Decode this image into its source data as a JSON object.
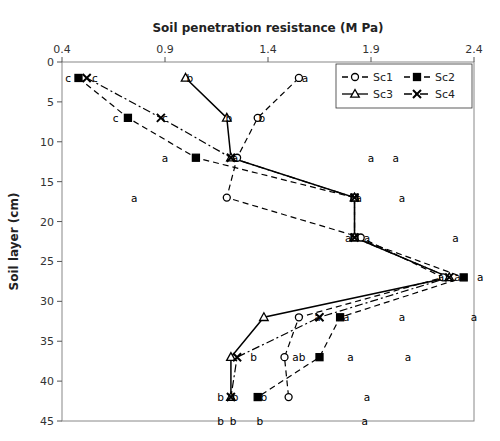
{
  "chart_data": {
    "type": "line",
    "xlabel": "Soil penetration resistance (M Pa)",
    "ylabel": "Soil layer (cm)",
    "xlim": [
      0.4,
      2.4
    ],
    "ylim": [
      45,
      0
    ],
    "xticks": [
      0.4,
      0.9,
      1.4,
      1.9,
      2.4
    ],
    "yticks": [
      0,
      5,
      10,
      15,
      20,
      25,
      30,
      35,
      40,
      45
    ],
    "y": [
      2,
      7,
      12,
      17,
      22,
      27,
      32,
      37,
      42
    ],
    "series": [
      {
        "name": "Sc1",
        "color": "#000000",
        "marker": "circle",
        "line_style": "dashed",
        "values": [
          1.55,
          1.35,
          1.25,
          1.2,
          1.85,
          2.25,
          1.55,
          1.48,
          1.5
        ]
      },
      {
        "name": "Sc2",
        "color": "#000000",
        "marker": "square",
        "line_style": "dashed",
        "values": [
          0.48,
          0.72,
          1.05,
          1.82,
          1.82,
          2.35,
          1.75,
          1.65,
          1.35
        ]
      },
      {
        "name": "Sc3",
        "color": "#000000",
        "marker": "triangle",
        "line_style": "solid",
        "values": [
          1.0,
          1.2,
          1.22,
          1.82,
          1.82,
          2.28,
          1.38,
          1.22,
          1.22
        ]
      },
      {
        "name": "Sc4",
        "color": "#000000",
        "marker": "x",
        "line_style": "dashdot",
        "values": [
          0.52,
          0.88,
          1.22,
          1.82,
          1.82,
          2.28,
          1.65,
          1.25,
          1.22
        ]
      }
    ],
    "annotations": [
      {
        "x": 0.43,
        "y": 2,
        "text": "c"
      },
      {
        "x": 0.56,
        "y": 2,
        "text": "c"
      },
      {
        "x": 1.02,
        "y": 2,
        "text": "b"
      },
      {
        "x": 1.58,
        "y": 2,
        "text": "a"
      },
      {
        "x": 0.66,
        "y": 7,
        "text": "c"
      },
      {
        "x": 0.9,
        "y": 7,
        "text": "c"
      },
      {
        "x": 1.21,
        "y": 7,
        "text": "b"
      },
      {
        "x": 1.37,
        "y": 7,
        "text": "b"
      },
      {
        "x": 0.9,
        "y": 12,
        "text": "a"
      },
      {
        "x": 1.24,
        "y": 12,
        "text": "a"
      },
      {
        "x": 1.9,
        "y": 12,
        "text": "a"
      },
      {
        "x": 2.02,
        "y": 12,
        "text": "a"
      },
      {
        "x": 0.75,
        "y": 17,
        "text": "a"
      },
      {
        "x": 1.84,
        "y": 17,
        "text": "a"
      },
      {
        "x": 2.05,
        "y": 17,
        "text": "a"
      },
      {
        "x": 1.79,
        "y": 22,
        "text": "a"
      },
      {
        "x": 1.88,
        "y": 22,
        "text": "a"
      },
      {
        "x": 2.31,
        "y": 22,
        "text": "a"
      },
      {
        "x": 2.24,
        "y": 27,
        "text": "a"
      },
      {
        "x": 2.32,
        "y": 27,
        "text": "a"
      },
      {
        "x": 2.43,
        "y": 27,
        "text": "a"
      },
      {
        "x": 1.64,
        "y": 32,
        "text": "a"
      },
      {
        "x": 1.78,
        "y": 32,
        "text": "a"
      },
      {
        "x": 2.05,
        "y": 32,
        "text": "a"
      },
      {
        "x": 2.4,
        "y": 32,
        "text": "a"
      },
      {
        "x": 1.33,
        "y": 37,
        "text": "b"
      },
      {
        "x": 1.55,
        "y": 37,
        "text": "ab"
      },
      {
        "x": 1.8,
        "y": 37,
        "text": "a"
      },
      {
        "x": 2.08,
        "y": 37,
        "text": "a"
      },
      {
        "x": 1.17,
        "y": 42,
        "text": "b"
      },
      {
        "x": 1.24,
        "y": 42,
        "text": "b"
      },
      {
        "x": 1.38,
        "y": 42,
        "text": "b"
      },
      {
        "x": 1.88,
        "y": 42,
        "text": "a"
      },
      {
        "x": 1.17,
        "y": 45,
        "text": "b"
      },
      {
        "x": 1.23,
        "y": 45,
        "text": "b"
      },
      {
        "x": 1.36,
        "y": 45,
        "text": "b"
      },
      {
        "x": 1.87,
        "y": 45,
        "text": "a"
      }
    ],
    "legend": "upper right",
    "grid": false
  }
}
